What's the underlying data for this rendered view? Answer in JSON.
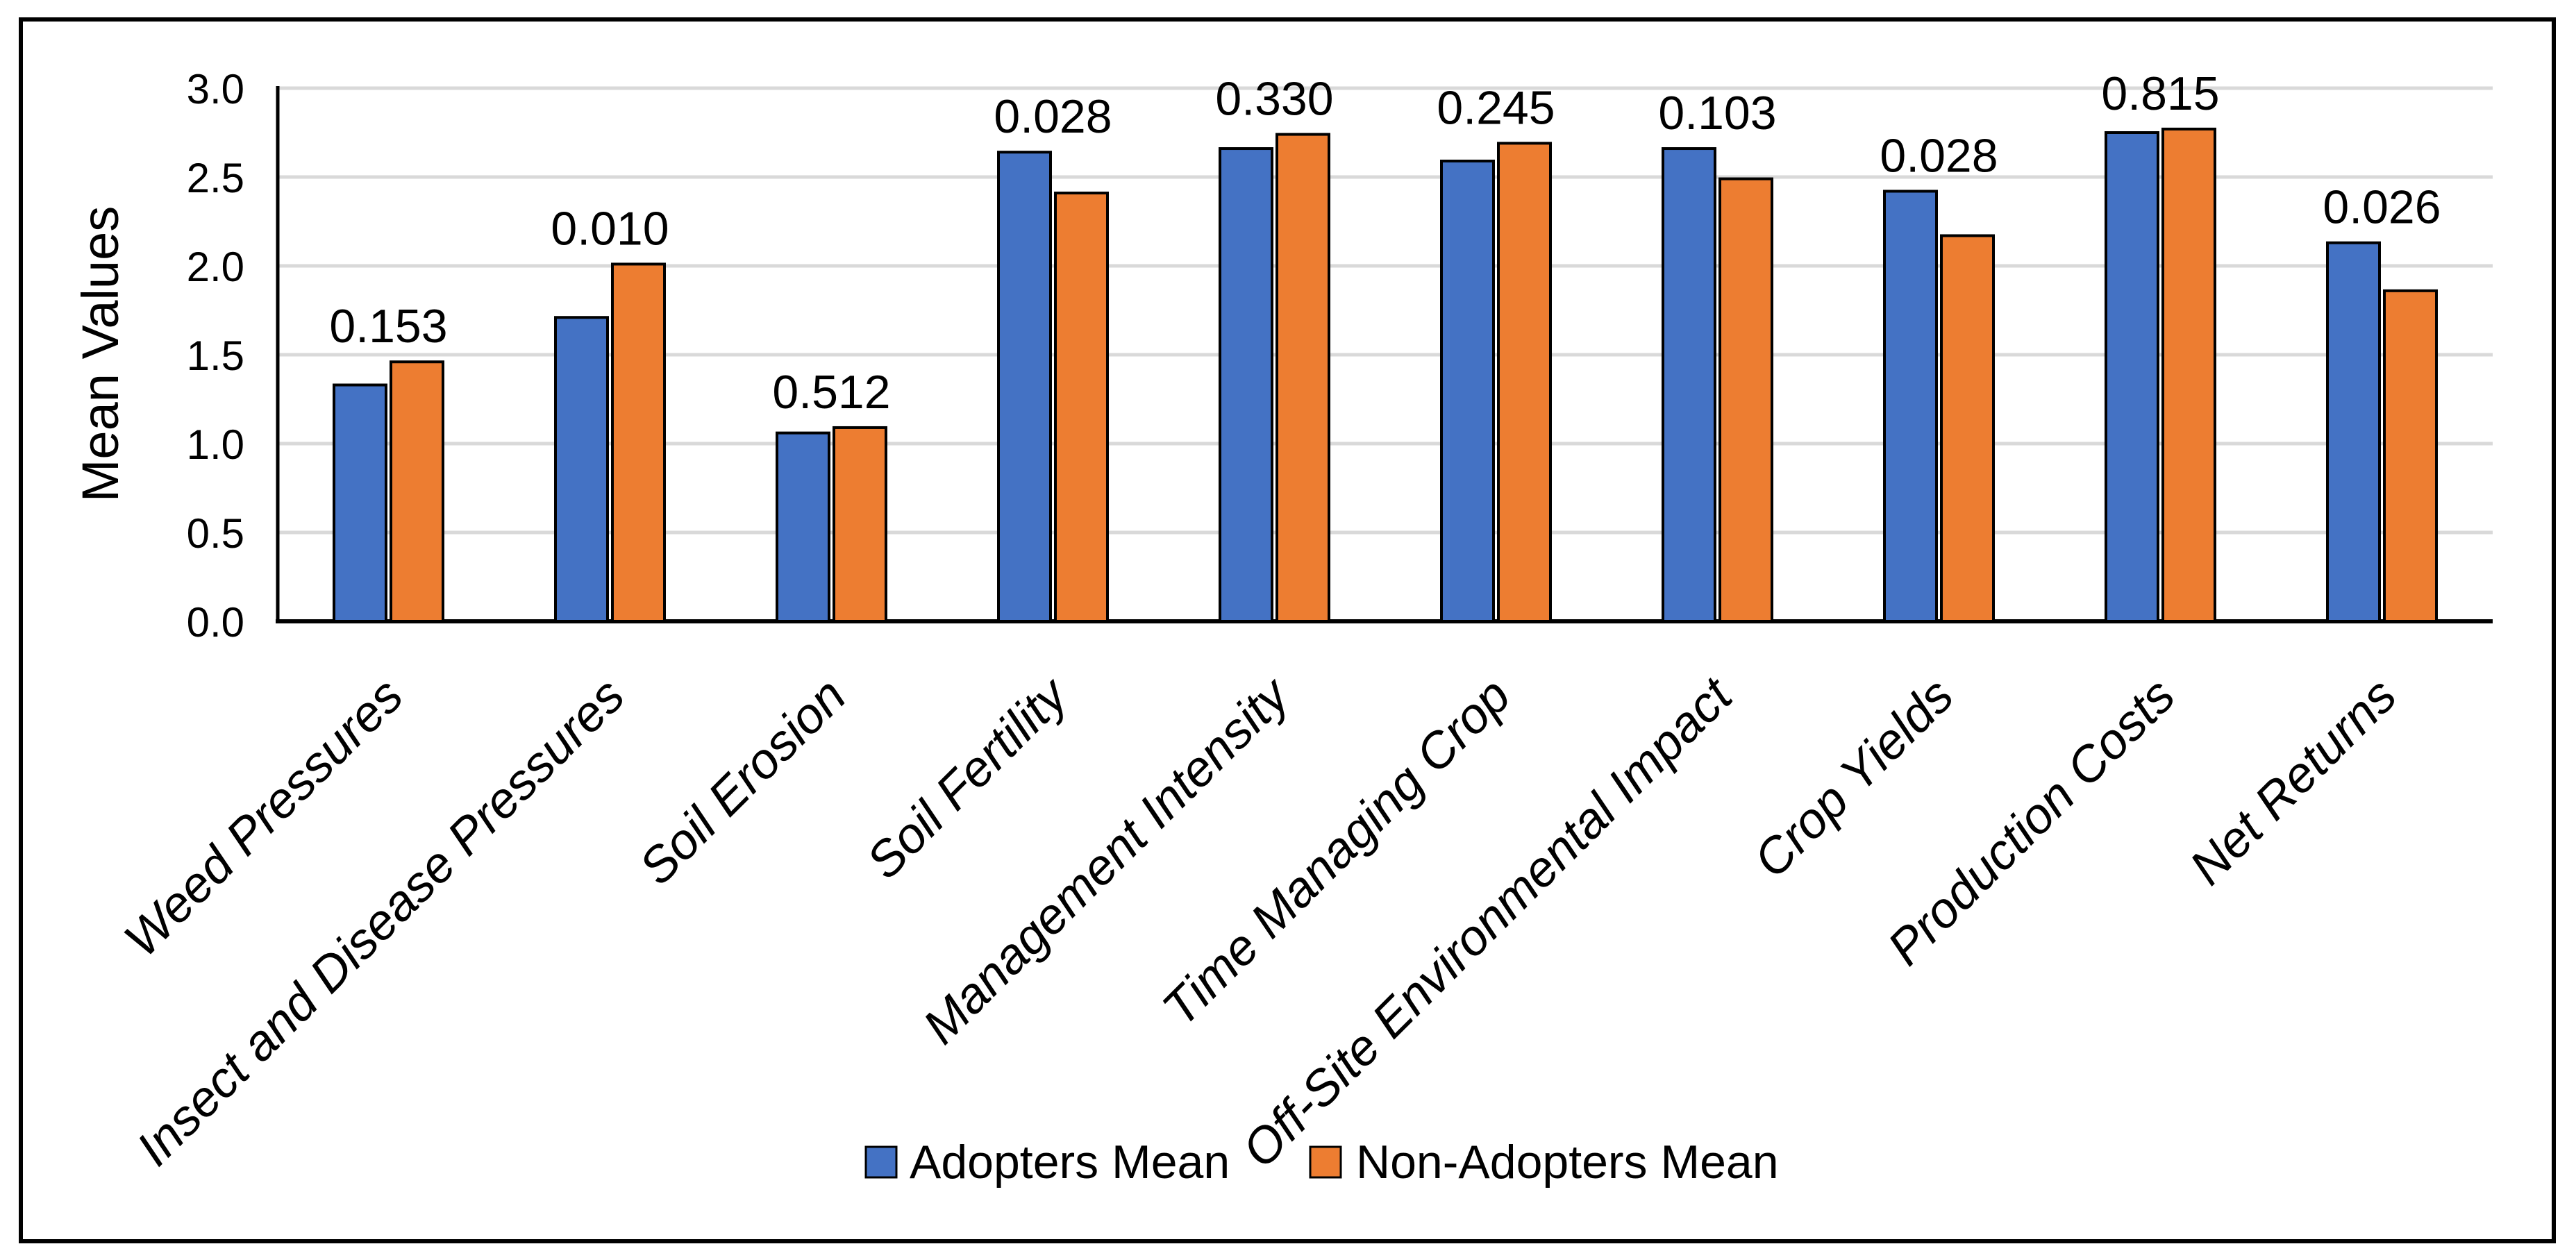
{
  "figure": {
    "background": "#FFFFFF",
    "border_color": "#000000"
  },
  "chart_data": {
    "type": "bar",
    "title": "",
    "xlabel": "",
    "ylabel": "Mean Values",
    "ylim": [
      0.0,
      3.0
    ],
    "ytick_step": 0.5,
    "yticks": [
      "0.0",
      "0.5",
      "1.0",
      "1.5",
      "2.0",
      "2.5",
      "3.0"
    ],
    "grid": true,
    "gridline_color": "#D9D9D9",
    "axis_color": "#000000",
    "legend_position": "bottom",
    "categories": [
      "Weed Pressures",
      "Insect and Disease Pressures",
      "Soil Erosion",
      "Soil Fertility",
      "Management Intensity",
      "Time Managing Crop",
      "Off-Site Environmental Impact",
      "Crop Yields",
      "Production Costs",
      "Net Returns"
    ],
    "series": [
      {
        "name": "Adopters Mean",
        "color": "#4472C4",
        "values": [
          1.33,
          1.71,
          1.06,
          2.64,
          2.66,
          2.59,
          2.66,
          2.42,
          2.75,
          2.13
        ]
      },
      {
        "name": "Non-Adopters Mean",
        "color": "#ED7D31",
        "values": [
          1.46,
          2.01,
          1.09,
          2.41,
          2.74,
          2.69,
          2.49,
          2.17,
          2.77,
          1.86
        ]
      }
    ],
    "bar_labels": [
      "0.153",
      "0.010",
      "0.512",
      "0.028",
      "0.330",
      "0.245",
      "0.103",
      "0.028",
      "0.815",
      "0.026"
    ]
  },
  "legend": {
    "items": [
      {
        "label": "Adopters Mean",
        "color": "#4472C4"
      },
      {
        "label": "Non-Adopters Mean",
        "color": "#ED7D31"
      }
    ]
  }
}
